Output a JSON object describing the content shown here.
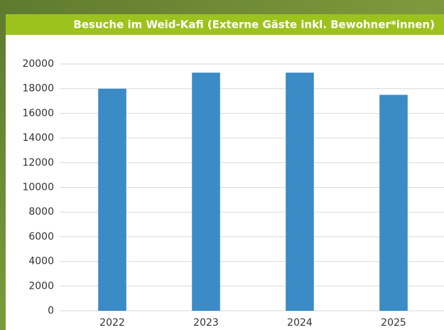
{
  "chart_data": {
    "type": "bar",
    "title": "Besuche im Weid-Kafi (Externe Gäste inkl. Bewohner*innen)",
    "categories": [
      "2022",
      "2023",
      "2024",
      "2025"
    ],
    "values": [
      18000,
      19300,
      19300,
      17500
    ],
    "color": "#3a8bc6",
    "ylim": [
      0,
      20000
    ],
    "yticks": [
      0,
      2000,
      4000,
      6000,
      8000,
      10000,
      12000,
      14000,
      16000,
      18000,
      20000
    ],
    "grid": true
  }
}
